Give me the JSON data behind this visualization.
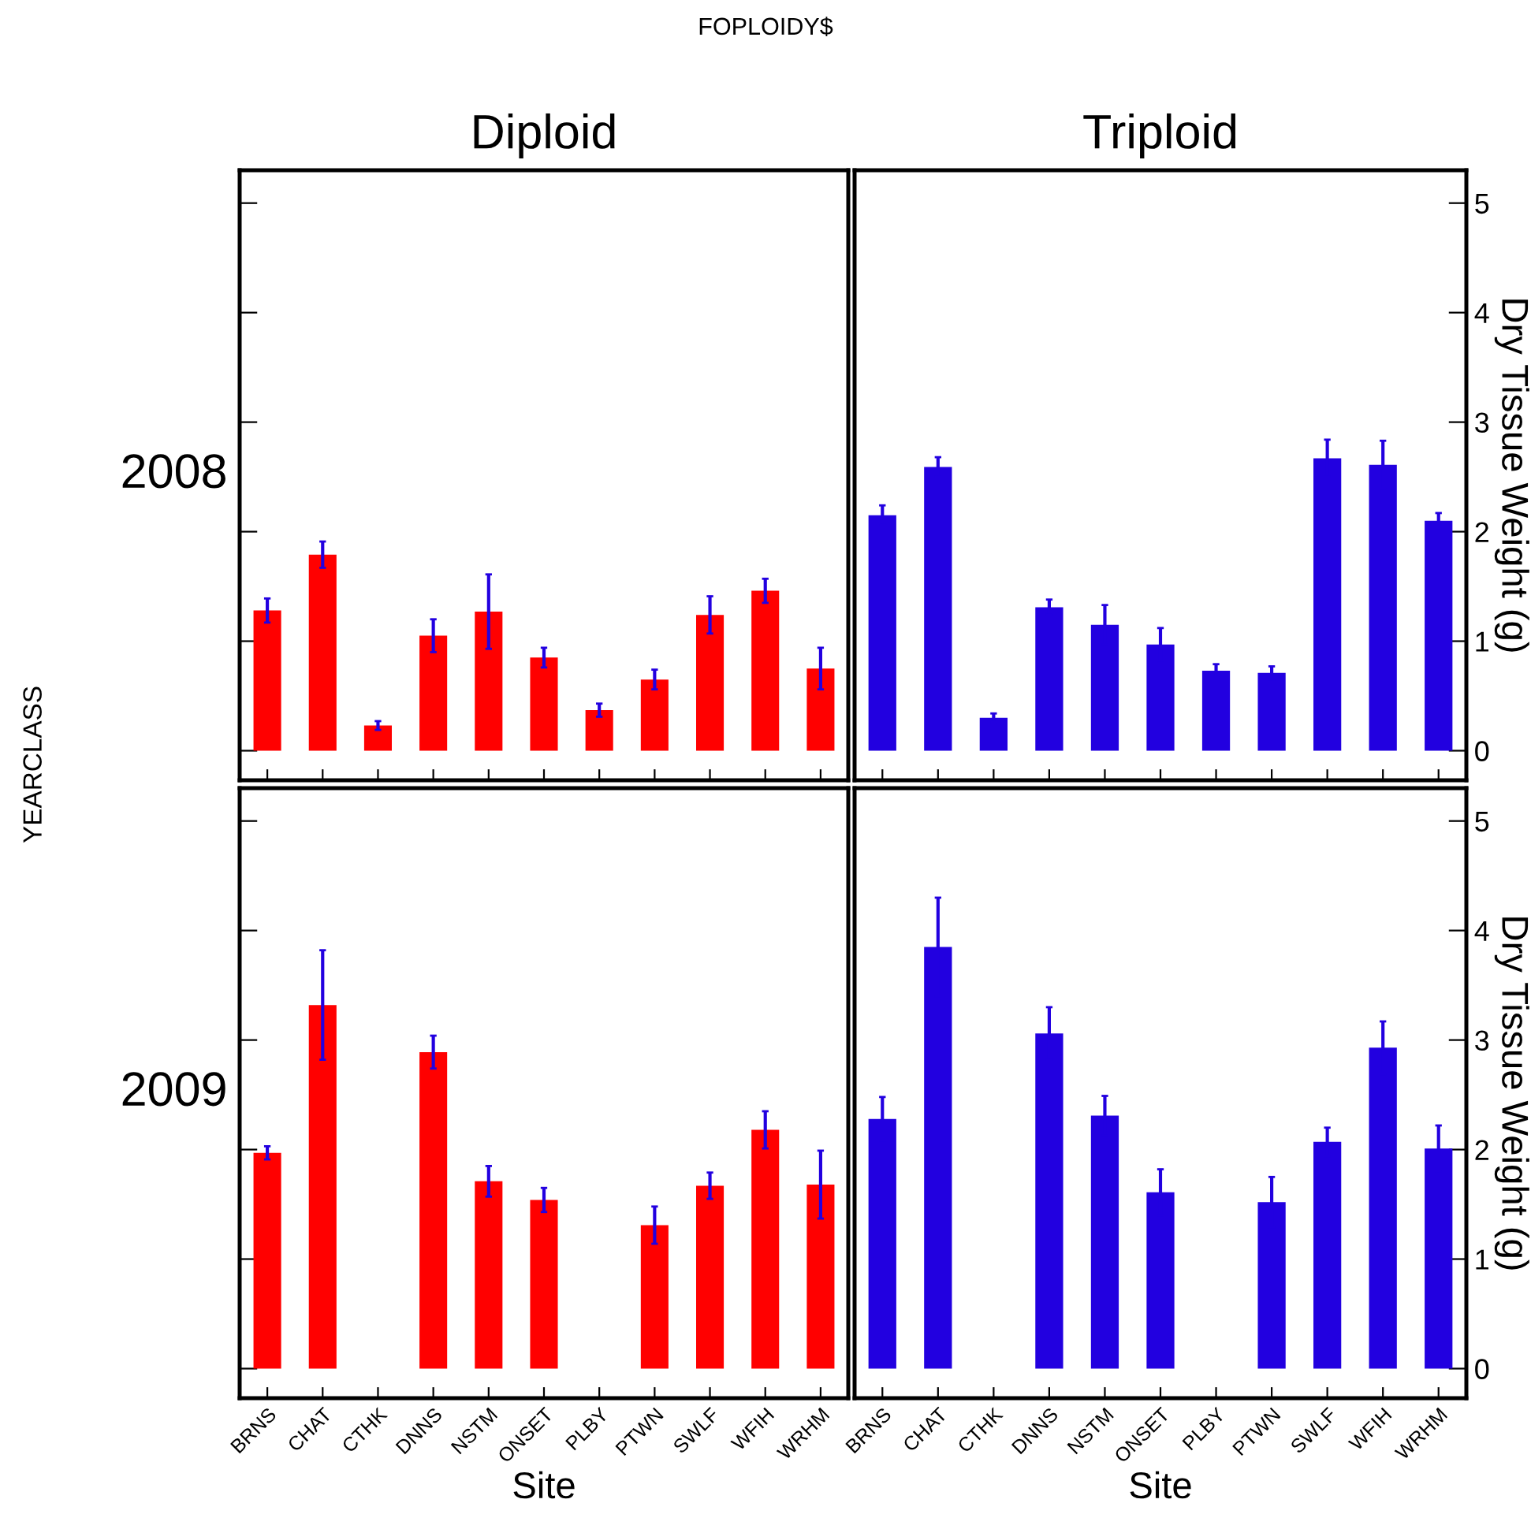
{
  "chart_data": [
    {
      "type": "bar",
      "title": "Diploid",
      "annotations": [
        "FOPLOIDY$",
        "YEARCLASS",
        "2008"
      ],
      "tick_labels": false,
      "categories": [
        null,
        null,
        null,
        null,
        null,
        null,
        null,
        null,
        null,
        null,
        null
      ],
      "ylim": [
        -0.27,
        5.3
      ],
      "yticks": [
        0,
        1,
        2,
        3,
        4,
        5
      ],
      "grid": false,
      "legend": false,
      "series": [
        {
          "color": "#ff0000",
          "values": [
            1.28,
            1.79,
            0.23,
            1.05,
            1.27,
            0.85,
            0.37,
            0.65,
            1.24,
            1.46,
            0.75
          ],
          "errors": [
            0.11,
            0.12,
            0.04,
            0.15,
            0.34,
            0.09,
            0.06,
            0.09,
            0.17,
            0.11,
            0.19
          ]
        }
      ]
    },
    {
      "type": "bar",
      "title": "Triploid",
      "ylabel": "Dry Tissue Weight (g)",
      "tick_labels": "y",
      "categories": [
        null,
        null,
        null,
        null,
        null,
        null,
        null,
        null,
        null,
        null,
        null
      ],
      "ylim": [
        -0.27,
        5.3
      ],
      "yticks": [
        0,
        1,
        2,
        3,
        4,
        5
      ],
      "grid": false,
      "legend": false,
      "series": [
        {
          "color": "#2200e0",
          "values": [
            2.15,
            2.59,
            0.3,
            1.31,
            1.15,
            0.97,
            0.73,
            0.71,
            2.67,
            2.61,
            2.1
          ],
          "errors": [
            0.09,
            0.09,
            0.04,
            0.07,
            0.18,
            0.15,
            0.06,
            0.06,
            0.17,
            0.22,
            0.07
          ]
        }
      ]
    },
    {
      "type": "bar",
      "xlabel": "Site",
      "annotations": [
        "2009"
      ],
      "tick_labels": "x",
      "categories": [
        "BRNS",
        "CHAT",
        "CTHK",
        "DNNS",
        "NSTM",
        "ONSET",
        "PLBY",
        "PTWN",
        "SWLF",
        "WFIH",
        "WRHM"
      ],
      "ylim": [
        -0.27,
        5.3
      ],
      "yticks": [
        0,
        1,
        2,
        3,
        4,
        5
      ],
      "grid": false,
      "legend": false,
      "series": [
        {
          "color": "#ff0000",
          "values": [
            1.97,
            3.32,
            null,
            2.89,
            1.71,
            1.54,
            null,
            1.31,
            1.67,
            2.18,
            1.68
          ],
          "errors": [
            0.06,
            0.5,
            null,
            0.15,
            0.14,
            0.11,
            null,
            0.17,
            0.12,
            0.17,
            0.31
          ]
        }
      ]
    },
    {
      "type": "bar",
      "xlabel": "Site",
      "ylabel": "Dry Tissue Weight (g)",
      "categories": [
        "BRNS",
        "CHAT",
        "CTHK",
        "DNNS",
        "NSTM",
        "ONSET",
        "PLBY",
        "PTWN",
        "SWLF",
        "WFIH",
        "WRHM"
      ],
      "ylim": [
        -0.27,
        5.3
      ],
      "yticks": [
        0,
        1,
        2,
        3,
        4,
        5
      ],
      "grid": false,
      "legend": false,
      "series": [
        {
          "color": "#2200e0",
          "values": [
            2.28,
            3.85,
            null,
            3.06,
            2.31,
            1.61,
            null,
            1.52,
            2.07,
            2.93,
            2.01
          ],
          "errors": [
            0.2,
            0.45,
            null,
            0.24,
            0.18,
            0.21,
            null,
            0.23,
            0.13,
            0.24,
            0.21
          ]
        }
      ]
    }
  ]
}
